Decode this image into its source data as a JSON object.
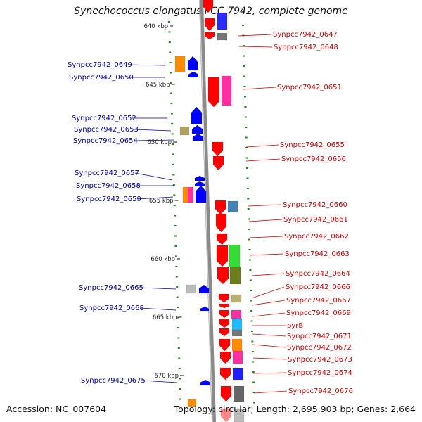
{
  "title": "Synechococcus elongatus PCC 7942, complete genome",
  "footer": {
    "accession": "Accession: NC_007604",
    "summary": "Topology: circular; Length: 2,695,903 bp; Genes: 2,664"
  },
  "colors": {
    "left_label": "#0000aa",
    "right_label": "#cc0000",
    "backbone": "#8a8a8a",
    "tick": "#1a8a1a"
  },
  "scale_marks": [
    "640 kbp",
    "645 kbp",
    "650 kbp",
    "655 kbp",
    "660 kbp",
    "665 kbp",
    "670 kbp"
  ],
  "genes_left": [
    "Synpcc7942_0649",
    "Synpcc7942_0650",
    "Synpcc7942_0652",
    "Synpcc7942_0653",
    "Synpcc7942_0654",
    "Synpcc7942_0657",
    "Synpcc7942_0658",
    "Synpcc7942_0659",
    "Synpcc7942_0665",
    "Synpcc7942_0668",
    "Synpcc7942_0675"
  ],
  "genes_right": [
    "Synpcc7942_0647",
    "Synpcc7942_0648",
    "Synpcc7942_0651",
    "Synpcc7942_0655",
    "Synpcc7942_0656",
    "Synpcc7942_0660",
    "Synpcc7942_0661",
    "Synpcc7942_0662",
    "Synpcc7942_0663",
    "Synpcc7942_0664",
    "Synpcc7942_0666",
    "Synpcc7942_0667",
    "Synpcc7942_0669",
    "pyrB",
    "Synpcc7942_0671",
    "Synpcc7942_0672",
    "Synpcc7942_0673",
    "Synpcc7942_0674",
    "Synpcc7942_0676"
  ]
}
